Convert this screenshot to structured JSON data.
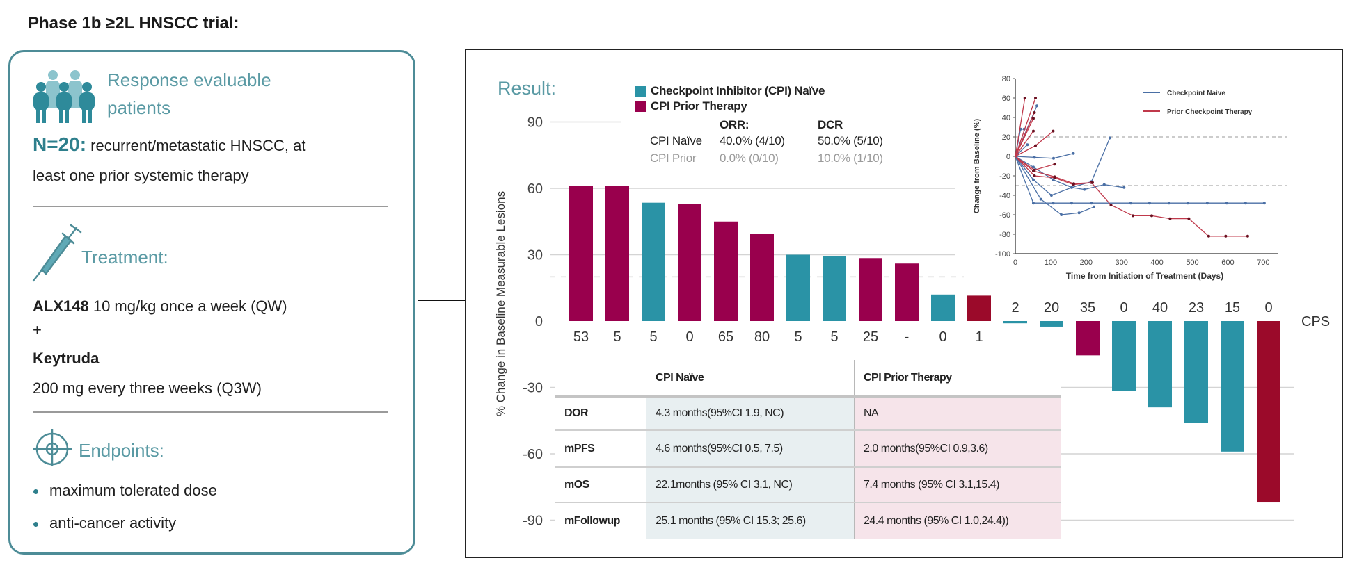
{
  "title": "Phase 1b ≥2L HNSCC trial:",
  "left_panel": {
    "patients": {
      "icon": "people-group-icon",
      "heading_line1": "Response  evaluable",
      "heading_line2": "patients",
      "n_label": "N=20:",
      "description_line1": "recurrent/metastatic HNSCC,  at",
      "description_line2": "least one prior  systemic therapy"
    },
    "treatment": {
      "icon": "syringe-icon",
      "heading": "Treatment:",
      "drug1_name": "ALX148",
      "drug1_dose": "10 mg/kg once a week (QW)",
      "plus": "+",
      "drug2_name": "Keytruda",
      "drug2_dose": "200 mg every three weeks (Q3W)"
    },
    "endpoints": {
      "icon": "target-icon",
      "heading": "Endpoints:",
      "items": [
        "maximum tolerated dose",
        "anti-cancer activity"
      ]
    }
  },
  "results": {
    "heading": "Result:",
    "legend": [
      {
        "label": "Checkpoint Inhibitor (CPI) Naïve",
        "color": "#2a93a6"
      },
      {
        "label": "CPI Prior Therapy",
        "color": "#99004d"
      }
    ],
    "response_stats": {
      "headers": [
        "ORR:",
        "DCR"
      ],
      "rows": [
        {
          "group": "CPI Naïve",
          "orr": "40.0% (4/10)",
          "dcr": "50.0% (5/10)"
        },
        {
          "group": "CPI Prior",
          "orr": "0.0% (0/10)",
          "dcr": "10.0% (1/10)"
        }
      ]
    },
    "survival_table": {
      "columns": [
        "",
        "CPI Naïve",
        "CPI Prior Therapy"
      ],
      "rows": [
        {
          "metric": "DOR",
          "naive": "4.3 months(95%CI 1.9, NC)",
          "prior": "NA"
        },
        {
          "metric": "mPFS",
          "naive": "4.6 months(95%CI 0.5, 7.5)",
          "prior": "2.0 months(95%CI 0.9,3.6)"
        },
        {
          "metric": "mOS",
          "naive": "22.1months (95% CI 3.1, NC)",
          "prior": "7.4 months (95% CI 3.1,15.4)"
        },
        {
          "metric": "mFollowup",
          "naive": "25.1 months (95% CI 15.3; 25.6)",
          "prior": "24.4 months (95% CI 1.0,24.4))"
        }
      ]
    }
  },
  "colors": {
    "accent_teal": "#4d8c97",
    "naive_bar": "#2a93a6",
    "prior_bar": "#99004d",
    "highlight_bar": "#9b0a2a",
    "naive_table_bg": "#e8eff1",
    "prior_table_bg": "#f6e4ea",
    "spider_naive": "#4a6fa5",
    "spider_prior": "#c0394b"
  },
  "chart_data": [
    {
      "type": "bar",
      "title": "",
      "ylabel": "% Change in Baseline Measurable Lesions",
      "xlabel": "CPS",
      "ylim": [
        -90,
        90
      ],
      "yticks": [
        90,
        60,
        30,
        0,
        -30,
        -60,
        -90
      ],
      "grid": true,
      "reference_lines": [
        20
      ],
      "categories": [
        "53",
        "5",
        "5",
        "0",
        "65",
        "80",
        "5",
        "5",
        "25",
        "-",
        "0",
        "1",
        "2",
        "20",
        "35",
        "0",
        "40",
        "23",
        "15",
        "0"
      ],
      "values": [
        61,
        61,
        53.5,
        53,
        45,
        39.5,
        30,
        29.5,
        28.5,
        26,
        12,
        11.5,
        -1,
        -2.5,
        -15.5,
        -31.5,
        -39,
        -46,
        -59,
        -82
      ],
      "groups": [
        "CPI Prior Therapy",
        "CPI Prior Therapy",
        "Checkpoint Inhibitor (CPI) Naïve",
        "CPI Prior Therapy",
        "CPI Prior Therapy",
        "CPI Prior Therapy",
        "Checkpoint Inhibitor (CPI) Naïve",
        "Checkpoint Inhibitor (CPI) Naïve",
        "CPI Prior Therapy",
        "CPI Prior Therapy",
        "Checkpoint Inhibitor (CPI) Naïve",
        "CPI Prior Therapy",
        "Checkpoint Inhibitor (CPI) Naïve",
        "Checkpoint Inhibitor (CPI) Naïve",
        "CPI Prior Therapy",
        "Checkpoint Inhibitor (CPI) Naïve",
        "Checkpoint Inhibitor (CPI) Naïve",
        "Checkpoint Inhibitor (CPI) Naïve",
        "Checkpoint Inhibitor (CPI) Naïve",
        "CPI Prior Therapy"
      ],
      "bar_colors": [
        "#99004d",
        "#99004d",
        "#2a93a6",
        "#99004d",
        "#99004d",
        "#99004d",
        "#2a93a6",
        "#2a93a6",
        "#99004d",
        "#99004d",
        "#2a93a6",
        "#9b0a2a",
        "#2a93a6",
        "#2a93a6",
        "#99004d",
        "#2a93a6",
        "#2a93a6",
        "#2a93a6",
        "#2a93a6",
        "#9b0a2a"
      ]
    },
    {
      "type": "line",
      "title": "",
      "xlabel": "Time from Initiation of Treatment (Days)",
      "ylabel": "Change from Baseline (%)",
      "xlim": [
        0,
        700
      ],
      "ylim": [
        -100,
        80
      ],
      "xticks": [
        0,
        100,
        200,
        300,
        400,
        500,
        600,
        700
      ],
      "yticks": [
        80,
        60,
        40,
        20,
        0,
        -20,
        -40,
        -60,
        -80,
        -100
      ],
      "reference_lines": [
        20,
        -30
      ],
      "legend_position": "top-right",
      "legend": [
        {
          "label": "Checkpoint Naive",
          "color": "#4a6fa5"
        },
        {
          "label": "Prior Checkpoint Therapy",
          "color": "#c0394b"
        }
      ],
      "series": [
        {
          "group": "Checkpoint Naive",
          "points": [
            [
              0,
              0
            ],
            [
              51,
              -48
            ],
            [
              107,
              -48
            ],
            [
              159,
              -48
            ],
            [
              215,
              -48
            ],
            [
              326,
              -48
            ],
            [
              379,
              -48
            ],
            [
              434,
              -48
            ],
            [
              487,
              -48
            ],
            [
              542,
              -48
            ],
            [
              597,
              -48
            ],
            [
              650,
              -48
            ],
            [
              703,
              -48
            ]
          ]
        },
        {
          "group": "Checkpoint Naive",
          "points": [
            [
              0,
              0
            ],
            [
              72,
              -44
            ],
            [
              130,
              -60
            ],
            [
              180,
              -58
            ],
            [
              222,
              -52
            ]
          ]
        },
        {
          "group": "Checkpoint Naive",
          "points": [
            [
              0,
              0
            ],
            [
              51,
              -24
            ],
            [
              102,
              -40
            ],
            [
              159,
              -32
            ],
            [
              215,
              -26
            ],
            [
              267,
              19
            ]
          ]
        },
        {
          "group": "Checkpoint Naive",
          "points": [
            [
              0,
              0
            ],
            [
              54,
              -1
            ],
            [
              108,
              -2
            ],
            [
              164,
              3
            ]
          ]
        },
        {
          "group": "Checkpoint Naive",
          "points": [
            [
              0,
              0
            ],
            [
              15,
              28
            ],
            [
              25,
              28
            ]
          ]
        },
        {
          "group": "Checkpoint Naive",
          "points": [
            [
              0,
              0
            ],
            [
              34,
              12
            ]
          ]
        },
        {
          "group": "Checkpoint Naive",
          "points": [
            [
              0,
              0
            ],
            [
              51,
              -11
            ],
            [
              107,
              -24
            ],
            [
              159,
              -32
            ],
            [
              195,
              -34
            ],
            [
              251,
              -29
            ],
            [
              307,
              -32
            ]
          ]
        },
        {
          "group": "Checkpoint Naive",
          "points": [
            [
              0,
              0
            ],
            [
              61,
              52
            ]
          ]
        },
        {
          "group": "Prior Checkpoint Therapy",
          "points": [
            [
              0,
              0
            ],
            [
              27,
              60
            ]
          ]
        },
        {
          "group": "Prior Checkpoint Therapy",
          "points": [
            [
              0,
              0
            ],
            [
              57,
              60
            ]
          ]
        },
        {
          "group": "Prior Checkpoint Therapy",
          "points": [
            [
              0,
              0
            ],
            [
              54,
              45
            ]
          ]
        },
        {
          "group": "Prior Checkpoint Therapy",
          "points": [
            [
              0,
              0
            ],
            [
              51,
              39
            ]
          ]
        },
        {
          "group": "Prior Checkpoint Therapy",
          "points": [
            [
              0,
              0
            ],
            [
              51,
              26
            ]
          ]
        },
        {
          "group": "Prior Checkpoint Therapy",
          "points": [
            [
              0,
              0
            ],
            [
              57,
              11
            ],
            [
              107,
              26
            ]
          ]
        },
        {
          "group": "Prior Checkpoint Therapy",
          "points": [
            [
              0,
              0
            ],
            [
              54,
              -14
            ],
            [
              111,
              -8
            ]
          ]
        },
        {
          "group": "Prior Checkpoint Therapy",
          "points": [
            [
              0,
              0
            ],
            [
              54,
              -20
            ],
            [
              111,
              -22
            ],
            [
              164,
              -29
            ],
            [
              215,
              -27
            ],
            [
              270,
              -50
            ],
            [
              332,
              -61
            ],
            [
              385,
              -61
            ],
            [
              437,
              -64
            ],
            [
              490,
              -64
            ],
            [
              546,
              -82
            ],
            [
              594,
              -82
            ],
            [
              656,
              -82
            ]
          ]
        },
        {
          "group": "Prior Checkpoint Therapy",
          "points": [
            [
              0,
              0
            ],
            [
              51,
              -15
            ],
            [
              111,
              -21
            ],
            [
              165,
              -28
            ],
            [
              218,
              -27
            ]
          ]
        }
      ]
    }
  ]
}
